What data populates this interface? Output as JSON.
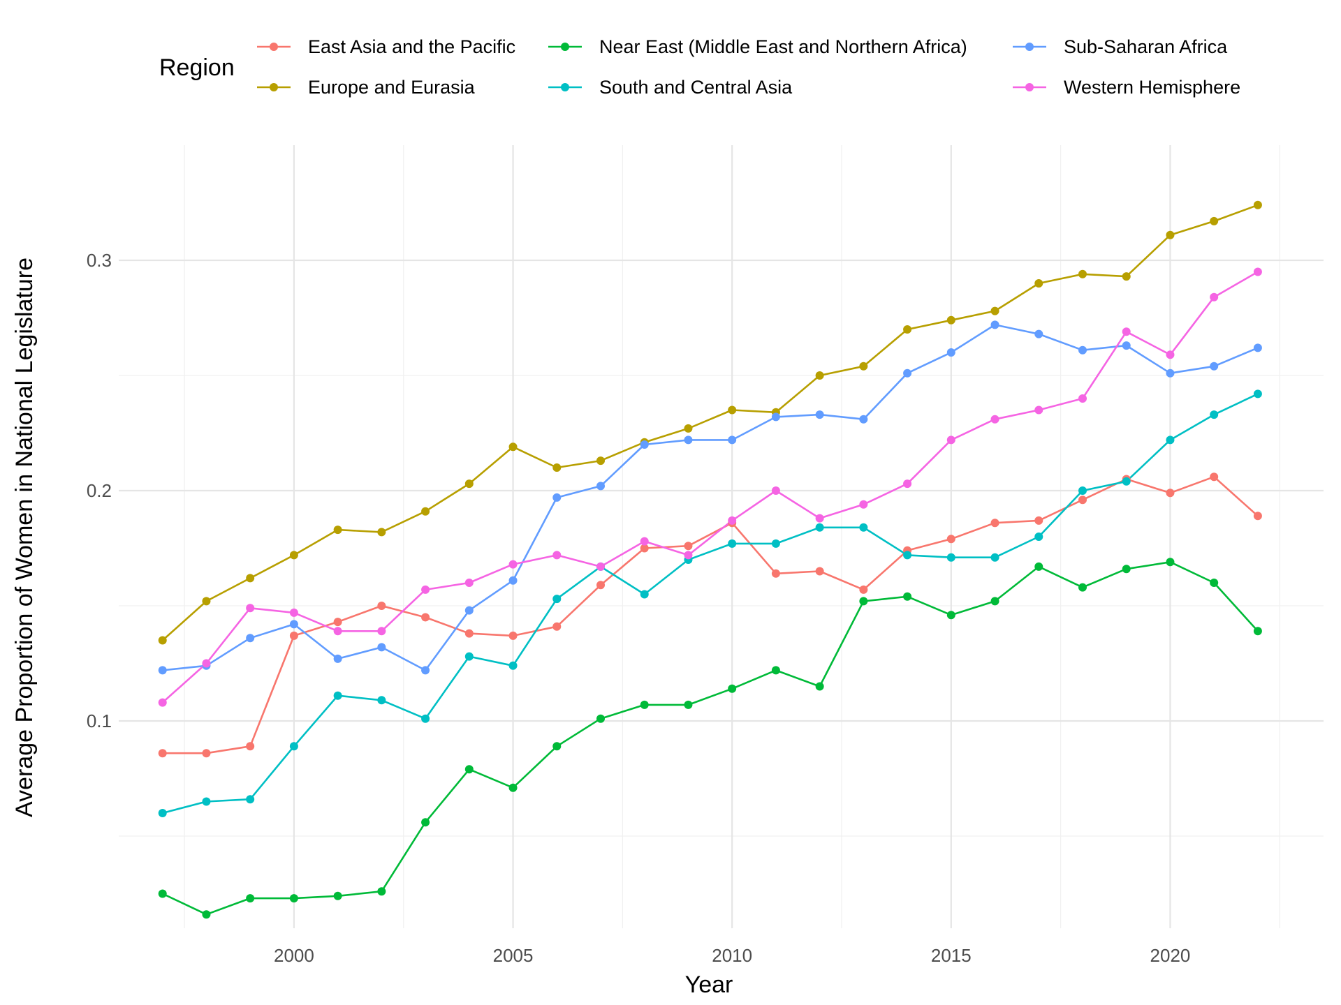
{
  "chart_data": {
    "type": "line",
    "xlabel": "Year",
    "ylabel": "Average Proportion of Women in National Legislature",
    "x_ticks": [
      2000,
      2005,
      2010,
      2015,
      2020
    ],
    "y_ticks": [
      0.1,
      0.2,
      0.3
    ],
    "y_tick_labels": [
      "0.1",
      "0.2",
      "0.3"
    ],
    "xlim": [
      1996,
      2023.5
    ],
    "ylim": [
      0.01,
      0.35
    ],
    "grid": true,
    "legend": {
      "title": "Region",
      "placement": "top"
    },
    "x": [
      1997,
      1998,
      1999,
      2000,
      2001,
      2002,
      2003,
      2004,
      2005,
      2006,
      2007,
      2008,
      2009,
      2010,
      2011,
      2012,
      2013,
      2014,
      2015,
      2016,
      2017,
      2018,
      2019,
      2020,
      2021,
      2022
    ],
    "series": [
      {
        "name": "East Asia and the Pacific",
        "color": "#F8766D",
        "values": [
          0.086,
          0.086,
          0.089,
          0.137,
          0.143,
          0.15,
          0.145,
          0.138,
          0.137,
          0.141,
          0.159,
          0.175,
          0.176,
          0.186,
          0.164,
          0.165,
          0.157,
          0.174,
          0.179,
          0.186,
          0.187,
          0.196,
          0.205,
          0.199,
          0.206,
          0.189
        ]
      },
      {
        "name": "Europe and Eurasia",
        "color": "#B79F00",
        "values": [
          0.135,
          0.152,
          0.162,
          0.172,
          0.183,
          0.182,
          0.191,
          0.203,
          0.219,
          0.21,
          0.213,
          0.221,
          0.227,
          0.235,
          0.234,
          0.25,
          0.254,
          0.27,
          0.274,
          0.278,
          0.29,
          0.294,
          0.293,
          0.311,
          0.317,
          0.324
        ]
      },
      {
        "name": "Near East (Middle East and Northern Africa)",
        "color": "#00BA38",
        "values": [
          0.025,
          0.016,
          0.023,
          0.023,
          0.024,
          0.026,
          0.056,
          0.079,
          0.071,
          0.089,
          0.101,
          0.107,
          0.107,
          0.114,
          0.122,
          0.115,
          0.152,
          0.154,
          0.146,
          0.152,
          0.167,
          0.158,
          0.166,
          0.169,
          0.16,
          0.139
        ]
      },
      {
        "name": "South and Central Asia",
        "color": "#00BFC4",
        "values": [
          0.06,
          0.065,
          0.066,
          0.089,
          0.111,
          0.109,
          0.101,
          0.128,
          0.124,
          0.153,
          0.167,
          0.155,
          0.17,
          0.177,
          0.177,
          0.184,
          0.184,
          0.172,
          0.171,
          0.171,
          0.18,
          0.2,
          0.204,
          0.222,
          0.233,
          0.242
        ]
      },
      {
        "name": "Sub-Saharan Africa",
        "color": "#619CFF",
        "values": [
          0.122,
          0.124,
          0.136,
          0.142,
          0.127,
          0.132,
          0.122,
          0.148,
          0.161,
          0.197,
          0.202,
          0.22,
          0.222,
          0.222,
          0.232,
          0.233,
          0.231,
          0.251,
          0.26,
          0.272,
          0.268,
          0.261,
          0.263,
          0.251,
          0.254,
          0.262
        ]
      },
      {
        "name": "Western Hemisphere",
        "color": "#F564E3",
        "values": [
          0.108,
          0.125,
          0.149,
          0.147,
          0.139,
          0.139,
          0.157,
          0.16,
          0.168,
          0.172,
          0.167,
          0.178,
          0.172,
          0.187,
          0.2,
          0.188,
          0.194,
          0.203,
          0.222,
          0.231,
          0.235,
          0.24,
          0.269,
          0.259,
          0.284,
          0.295
        ]
      }
    ]
  }
}
